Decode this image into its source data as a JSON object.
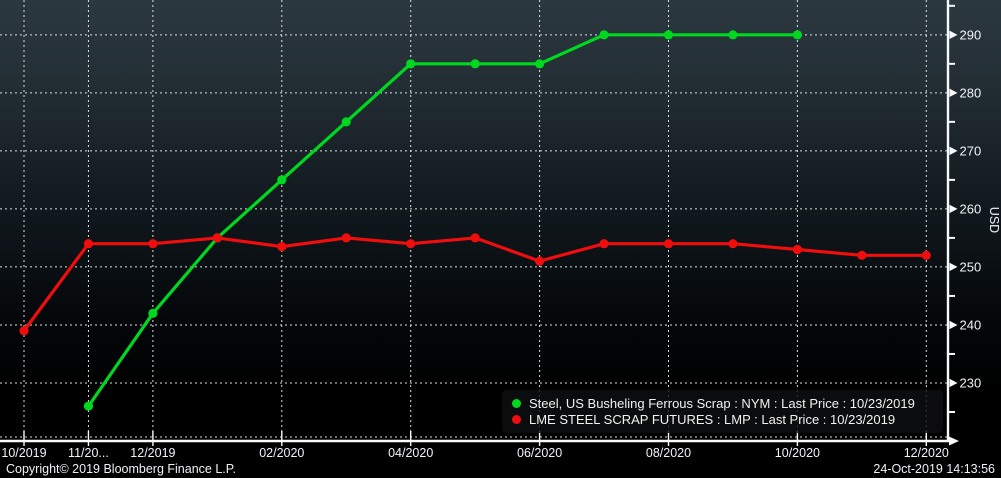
{
  "chart_data": {
    "type": "line",
    "ylabel": "USD",
    "ylim": [
      220,
      296
    ],
    "y_major_ticks": [
      230,
      240,
      250,
      260,
      270,
      280,
      290
    ],
    "y_minor_ticks": [
      225,
      235,
      245,
      255,
      265,
      275,
      285,
      295
    ],
    "grid": "dotted",
    "legend_position": "bottom-right",
    "categories": [
      "10/2019",
      "11/2019",
      "12/2019",
      "01/2020",
      "02/2020",
      "03/2020",
      "04/2020",
      "05/2020",
      "06/2020",
      "07/2020",
      "08/2020",
      "09/2020",
      "10/2020",
      "11/2020",
      "12/2020"
    ],
    "x_tick_labels": [
      {
        "index": 0,
        "label": "10/2019"
      },
      {
        "index": 1,
        "label": "11/20..."
      },
      {
        "index": 2,
        "label": "12/2019"
      },
      {
        "index": 4,
        "label": "02/2020"
      },
      {
        "index": 6,
        "label": "04/2020"
      },
      {
        "index": 8,
        "label": "06/2020"
      },
      {
        "index": 10,
        "label": "08/2020"
      },
      {
        "index": 12,
        "label": "10/2020"
      },
      {
        "index": 14,
        "label": "12/2020"
      }
    ],
    "series": [
      {
        "name": "Steel, US Busheling Ferrous Scrap : NYM : Last Price : 10/23/2019",
        "color": "#00d71f",
        "values": [
          null,
          226,
          242,
          255,
          265,
          275,
          285,
          285,
          285,
          290,
          290,
          290,
          290,
          null,
          null
        ]
      },
      {
        "name": "LME STEEL SCRAP FUTURES : LMP : Last Price : 10/23/2019",
        "color": "#ef0d0d",
        "values": [
          239,
          254,
          254,
          255,
          253.5,
          255,
          254,
          255,
          251,
          254,
          254,
          254,
          253,
          252,
          252
        ]
      }
    ]
  },
  "axis_style": {
    "grid_color": "#e4eaed",
    "axis_color": "#f7f9fa",
    "tick_label_color": "#f0f4f6"
  },
  "footer": {
    "copyright": "Copyright© 2019 Bloomberg Finance L.P.",
    "timestamp": "24-Oct-2019 14:13:56"
  }
}
